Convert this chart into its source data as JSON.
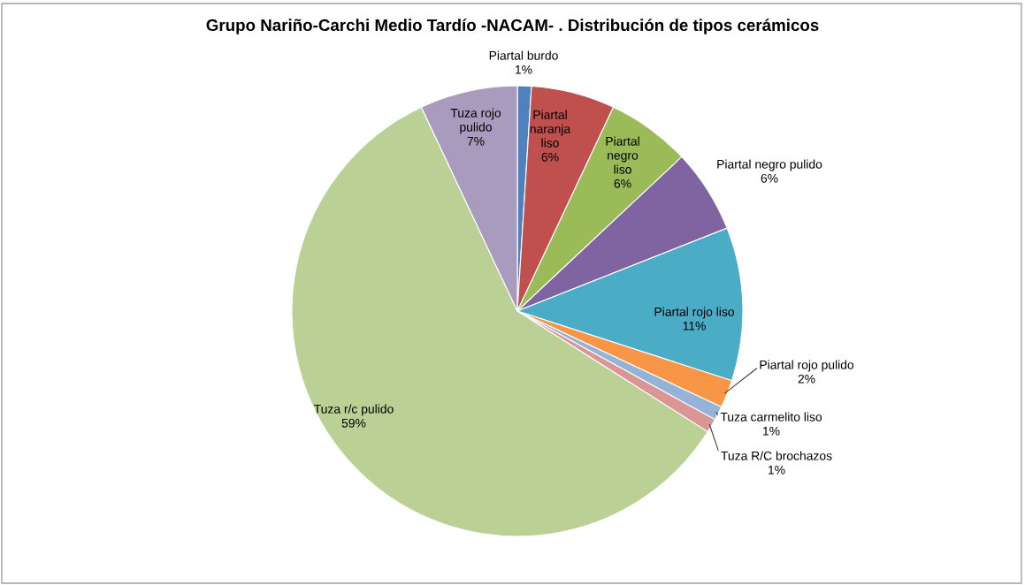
{
  "chart_data": {
    "type": "pie",
    "title": "Grupo Nariño-Carchi Medio Tardío -NACAM- . Distribución de tipos cerámicos",
    "categories": [
      "Piartal burdo",
      "Piartal naranja liso",
      "Piartal negro liso",
      "Piartal negro pulido",
      "Piartal rojo liso",
      "Piartal rojo pulido",
      "Tuza carmelito liso",
      "Tuza R/C brochazos",
      "Tuza r/c pulido",
      "Tuza rojo pulido"
    ],
    "values": [
      1,
      6,
      6,
      6,
      11,
      2,
      1,
      1,
      59,
      7
    ],
    "colors": [
      "#4f81bd",
      "#c0504d",
      "#9bbb59",
      "#8064a2",
      "#4bacc6",
      "#f79646",
      "#95b3d7",
      "#d99694",
      "#bbd095",
      "#a99bbd"
    ],
    "value_labels": [
      "1%",
      "6%",
      "6%",
      "6%",
      "11%",
      "2%",
      "1%",
      "1%",
      "59%",
      "7%"
    ]
  }
}
